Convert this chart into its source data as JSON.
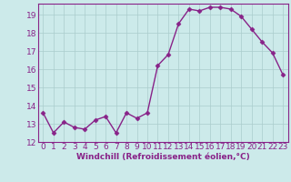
{
  "x": [
    0,
    1,
    2,
    3,
    4,
    5,
    6,
    7,
    8,
    9,
    10,
    11,
    12,
    13,
    14,
    15,
    16,
    17,
    18,
    19,
    20,
    21,
    22,
    23
  ],
  "y": [
    13.6,
    12.5,
    13.1,
    12.8,
    12.7,
    13.2,
    13.4,
    12.5,
    13.6,
    13.3,
    13.6,
    16.2,
    16.8,
    18.5,
    19.3,
    19.2,
    19.4,
    19.4,
    19.3,
    18.9,
    18.2,
    17.5,
    16.9,
    15.7
  ],
  "line_color": "#882288",
  "marker": "D",
  "markersize": 2.5,
  "bg_color": "#cceaea",
  "grid_color": "#aacccc",
  "xlabel": "Windchill (Refroidissement éolien,°C)",
  "ylim": [
    12,
    19.6
  ],
  "xlim": [
    -0.5,
    23.5
  ],
  "yticks": [
    12,
    13,
    14,
    15,
    16,
    17,
    18,
    19
  ],
  "xticks": [
    0,
    1,
    2,
    3,
    4,
    5,
    6,
    7,
    8,
    9,
    10,
    11,
    12,
    13,
    14,
    15,
    16,
    17,
    18,
    19,
    20,
    21,
    22,
    23
  ],
  "xlabel_fontsize": 6.5,
  "tick_fontsize": 6.5,
  "line_width": 1.0
}
